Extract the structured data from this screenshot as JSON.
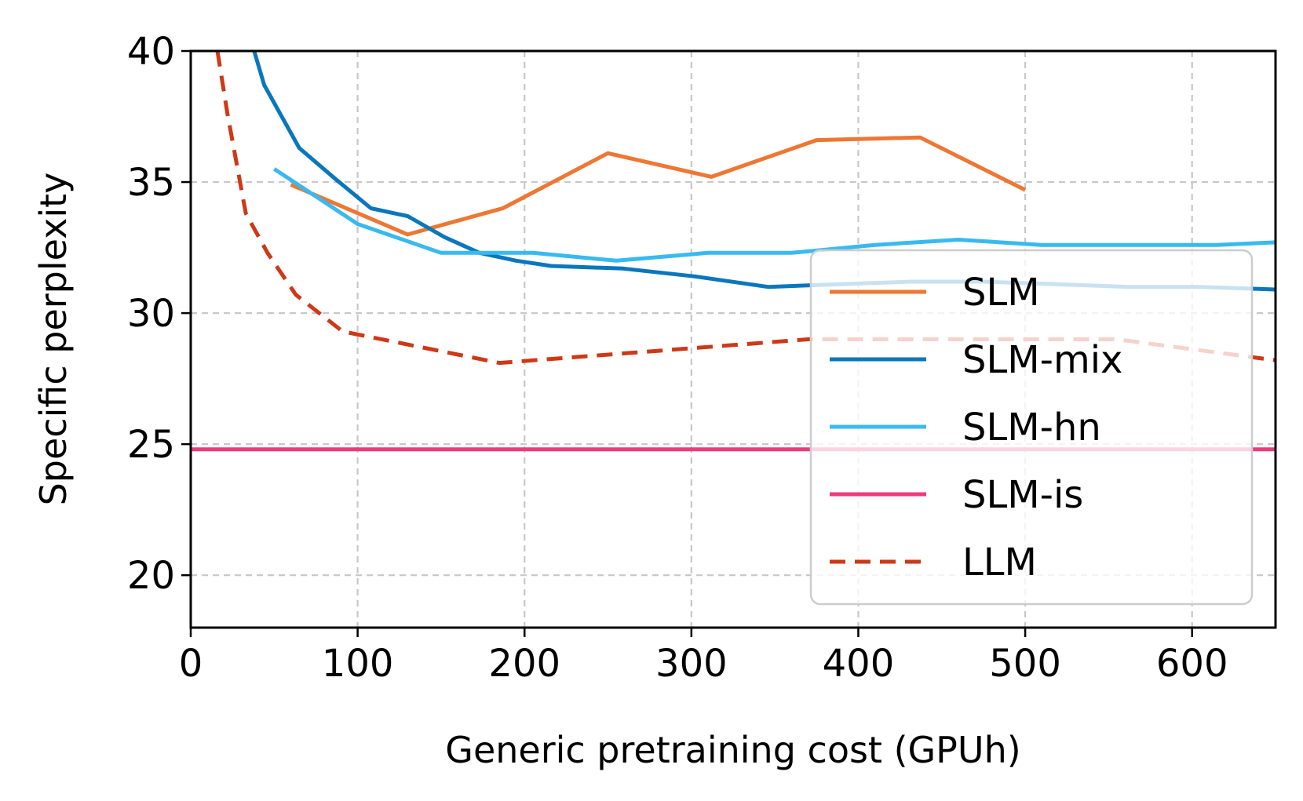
{
  "chart_data": {
    "type": "line",
    "title": "",
    "xlabel": "Generic pretraining cost (GPUh)",
    "ylabel": "Specific perplexity",
    "xlim": [
      0,
      650
    ],
    "ylim": [
      18,
      40
    ],
    "xticks": [
      0,
      100,
      200,
      300,
      400,
      500,
      600
    ],
    "xtick_labels": [
      "0",
      "100",
      "200",
      "300",
      "400",
      "500",
      "600"
    ],
    "yticks": [
      20,
      25,
      30,
      35,
      40
    ],
    "ytick_labels": [
      "20",
      "25",
      "30",
      "35",
      "40"
    ],
    "grid": true,
    "legend_position": "lower-right",
    "series": [
      {
        "name": "SLM",
        "color": "#ED7733",
        "dash": "solid",
        "x": [
          60,
          130,
          187,
          250,
          312,
          375,
          437,
          500
        ],
        "y": [
          34.9,
          33.0,
          34.0,
          36.1,
          35.2,
          36.6,
          36.7,
          34.7
        ]
      },
      {
        "name": "SLM-mix",
        "color": "#0A77BD",
        "dash": "solid",
        "x": [
          38,
          44,
          65,
          87,
          108,
          130,
          152,
          173,
          195,
          216,
          259,
          302,
          346,
          389,
          432,
          475,
          519,
          562,
          605,
          650
        ],
        "y": [
          40.0,
          38.7,
          36.3,
          35.1,
          34.0,
          33.7,
          32.9,
          32.3,
          32.0,
          31.8,
          31.7,
          31.4,
          31.0,
          31.1,
          31.2,
          31.2,
          31.1,
          31.0,
          31.0,
          30.9
        ]
      },
      {
        "name": "SLM-hn",
        "color": "#38BAF0",
        "dash": "solid",
        "x": [
          50,
          100,
          150,
          205,
          255,
          310,
          360,
          410,
          460,
          510,
          560,
          615,
          650
        ],
        "y": [
          35.5,
          33.4,
          32.3,
          32.3,
          32.0,
          32.3,
          32.3,
          32.6,
          32.8,
          32.6,
          32.6,
          32.6,
          32.7
        ]
      },
      {
        "name": "SLM-is",
        "color": "#EC3B7A",
        "dash": "solid",
        "x": [
          0,
          650
        ],
        "y": [
          24.8,
          24.8
        ]
      },
      {
        "name": "LLM",
        "color": "#CF3816",
        "dash": "dashed",
        "x": [
          16,
          22,
          33,
          46,
          63,
          91,
          185,
          370,
          555,
          650
        ],
        "y": [
          40.0,
          37.6,
          33.8,
          32.3,
          30.7,
          29.3,
          28.1,
          29.0,
          29.0,
          28.2
        ]
      }
    ]
  }
}
